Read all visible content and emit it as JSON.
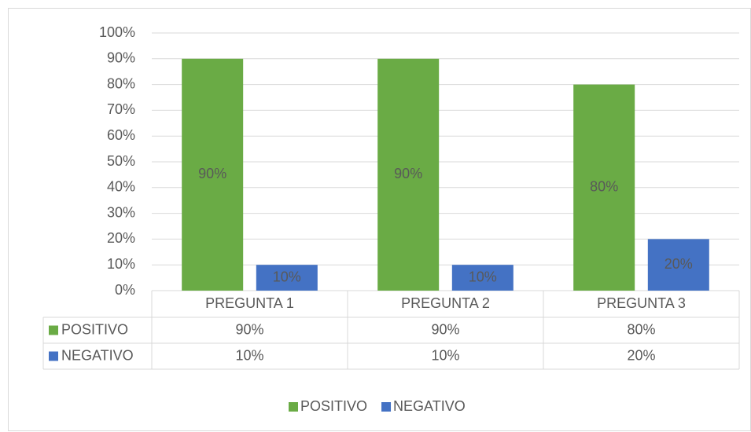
{
  "chart_data": {
    "type": "bar",
    "categories": [
      "PREGUNTA 1",
      "PREGUNTA 2",
      "PREGUNTA 3"
    ],
    "series": [
      {
        "name": "POSITIVO",
        "color": "#6aab45",
        "values": [
          90,
          90,
          80
        ],
        "value_labels": [
          "90%",
          "90%",
          "80%"
        ]
      },
      {
        "name": "NEGATIVO",
        "color": "#4472c4",
        "values": [
          10,
          10,
          20
        ],
        "value_labels": [
          "10%",
          "10%",
          "20%"
        ]
      }
    ],
    "ylim": [
      0,
      100
    ],
    "yticks": [
      {
        "value": 0,
        "label": "0%"
      },
      {
        "value": 10,
        "label": "10%"
      },
      {
        "value": 20,
        "label": "20%"
      },
      {
        "value": 30,
        "label": "30%"
      },
      {
        "value": 40,
        "label": "40%"
      },
      {
        "value": 50,
        "label": "50%"
      },
      {
        "value": 60,
        "label": "60%"
      },
      {
        "value": 70,
        "label": "70%"
      },
      {
        "value": 80,
        "label": "80%"
      },
      {
        "value": 90,
        "label": "90%"
      },
      {
        "value": 100,
        "label": "100%"
      }
    ],
    "grid": true,
    "legend": "bottom"
  }
}
